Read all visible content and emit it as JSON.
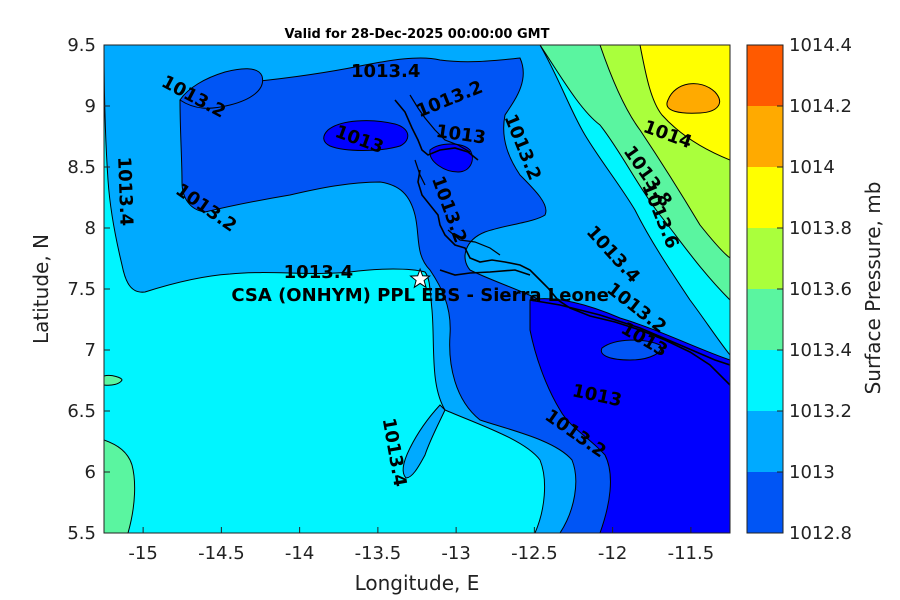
{
  "title": "Valid for 28-Dec-2025 00:00:00 GMT",
  "xlabel": "Longitude, E",
  "ylabel": "Latitude, N",
  "x_ticks": [
    "-15",
    "-14.5",
    "-14",
    "-13.5",
    "-13",
    "-12.5",
    "-12",
    "-11.5"
  ],
  "y_ticks": [
    "9.5",
    "9",
    "8.5",
    "8",
    "7.5",
    "7",
    "6.5",
    "6",
    "5.5"
  ],
  "colorbar": {
    "label": "Surface Pressure, mb",
    "levels": [
      "1014.4",
      "1014.2",
      "1014",
      "1013.8",
      "1013.6",
      "1013.4",
      "1013.2",
      "1013",
      "1012.8"
    ],
    "colors": [
      "#ff5a00",
      "#ffaa00",
      "#ffff00",
      "#aaff3c",
      "#5af5a0",
      "#00f5ff",
      "#00aaff",
      "#0055f5",
      "#0000ff"
    ]
  },
  "site": {
    "label": "CSA (ONHYM) PPL EBS  - Sierra Leone",
    "lon": -13.23,
    "lat": 7.58
  },
  "contour_labels": [
    {
      "text": "1013.4",
      "lon": -13.45,
      "lat": 9.28,
      "rot": 0
    },
    {
      "text": "1013.2",
      "lon": -14.68,
      "lat": 9.07,
      "rot": 28
    },
    {
      "text": "1013.2",
      "lon": -13.04,
      "lat": 9.05,
      "rot": -22
    },
    {
      "text": "1013",
      "lon": -13.62,
      "lat": 8.72,
      "rot": 20
    },
    {
      "text": "1013",
      "lon": -12.97,
      "lat": 8.76,
      "rot": 8
    },
    {
      "text": "1013.2",
      "lon": -12.58,
      "lat": 8.66,
      "rot": 68
    },
    {
      "text": "1014",
      "lon": -11.65,
      "lat": 8.76,
      "rot": 20
    },
    {
      "text": "1013.4",
      "lon": -15.12,
      "lat": 8.3,
      "rot": 88
    },
    {
      "text": "1013.8",
      "lon": -11.78,
      "lat": 8.42,
      "rot": 55
    },
    {
      "text": "1013.2",
      "lon": -14.6,
      "lat": 8.16,
      "rot": 35
    },
    {
      "text": "1013.2",
      "lon": -13.05,
      "lat": 8.15,
      "rot": 70
    },
    {
      "text": "1013.6",
      "lon": -11.7,
      "lat": 8.1,
      "rot": 68
    },
    {
      "text": "1013.4",
      "lon": -12.0,
      "lat": 7.78,
      "rot": 48
    },
    {
      "text": "1013.4",
      "lon": -13.88,
      "lat": 7.63,
      "rot": 0
    },
    {
      "text": "1013.2",
      "lon": -11.85,
      "lat": 7.34,
      "rot": 38
    },
    {
      "text": "1013",
      "lon": -11.8,
      "lat": 7.08,
      "rot": 30
    },
    {
      "text": "1013",
      "lon": -12.1,
      "lat": 6.62,
      "rot": 12
    },
    {
      "text": "1013.2",
      "lon": -12.24,
      "lat": 6.31,
      "rot": 35
    },
    {
      "text": "1013.4",
      "lon": -13.4,
      "lat": 6.16,
      "rot": 80
    }
  ]
}
